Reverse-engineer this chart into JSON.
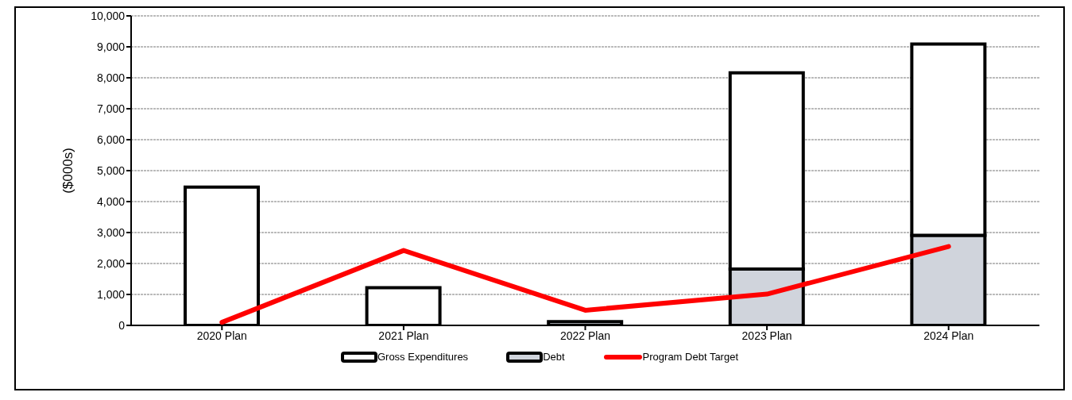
{
  "chart_data": {
    "type": "bar",
    "stacked": true,
    "ylabel": "($000s)",
    "categories": [
      "2020 Plan",
      "2021 Plan",
      "2022 Plan",
      "2023 Plan",
      "2024 Plan"
    ],
    "series": [
      {
        "name": "Debt",
        "color": "#d0d4dc",
        "values": [
          null,
          null,
          120,
          1820,
          2910
        ]
      },
      {
        "name": "Gross Expenditures",
        "color": "#ffffff",
        "values": [
          4470,
          1220,
          0,
          6340,
          6180
        ]
      },
      {
        "name": "Program Debt Target",
        "type": "line",
        "color": "#ff0000",
        "values": [
          100,
          2420,
          490,
          1010,
          2550
        ]
      }
    ],
    "ylim": [
      0,
      10000
    ],
    "yticks": [
      {
        "value": 0,
        "label": "0"
      },
      {
        "value": 1000,
        "label": "1,000"
      },
      {
        "value": 2000,
        "label": "2,000"
      },
      {
        "value": 3000,
        "label": "3,000"
      },
      {
        "value": 4000,
        "label": "4,000"
      },
      {
        "value": 5000,
        "label": "5,000"
      },
      {
        "value": 6000,
        "label": "6,000"
      },
      {
        "value": 7000,
        "label": "7,000"
      },
      {
        "value": 8000,
        "label": "8,000"
      },
      {
        "value": 9000,
        "label": "9,000"
      },
      {
        "value": 10000,
        "label": "10,000"
      }
    ],
    "grid": "y",
    "legend": "bottom",
    "marker": "none"
  }
}
